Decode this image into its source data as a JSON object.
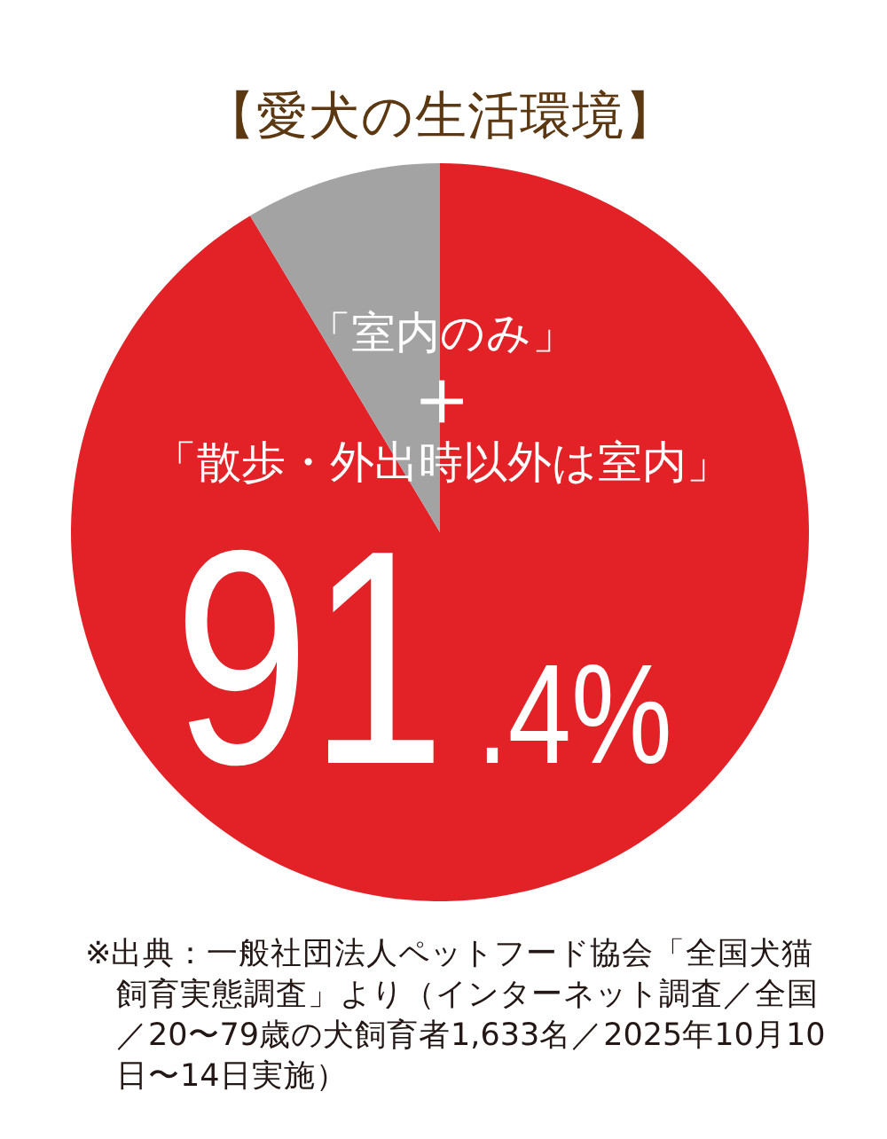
{
  "chart_data": {
    "type": "pie",
    "title": "【愛犬の生活環境】",
    "categories": [
      "「室内のみ」＋「散歩・外出時以外は室内」",
      null
    ],
    "values": [
      91.4,
      8.6
    ],
    "colors": [
      "#e32228",
      "#a3a3a3"
    ],
    "value_labels": [
      "91.4%",
      null
    ],
    "annotations": [
      "※出典：一般社団法人ペットフード協会「全国犬猫飼育実態調査」より（インターネット調査／全国／20〜79歳の犬飼育者1,633名／2025年10月10日〜14日実施）"
    ]
  }
}
